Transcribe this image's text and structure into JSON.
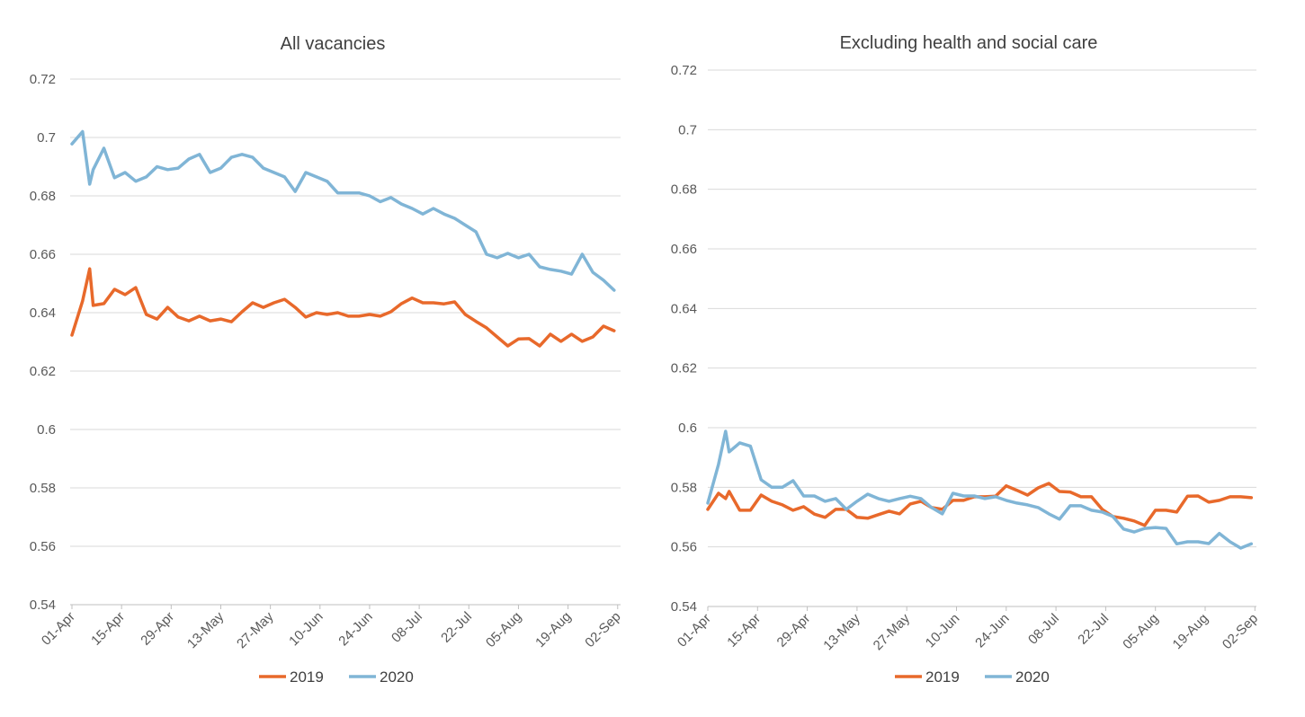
{
  "colors": {
    "2019": "#E8692B",
    "2020": "#80B5D6",
    "grid": "#D9D9D9"
  },
  "chart_data": [
    {
      "type": "line",
      "title": "All vacancies",
      "xlabel": "",
      "ylabel": "",
      "ylim": [
        0.54,
        0.72
      ],
      "yticks": [
        "0.54",
        "0.56",
        "0.58",
        "0.6",
        "0.62",
        "0.64",
        "0.66",
        "0.68",
        "0.7",
        "0.72"
      ],
      "xticks": [
        "01-Apr",
        "15-Apr",
        "29-Apr",
        "13-May",
        "27-May",
        "10-Jun",
        "24-Jun",
        "08-Jul",
        "22-Jul",
        "05-Aug",
        "19-Aug",
        "02-Sep"
      ],
      "grid": true,
      "legend": "bottom",
      "x": [
        "01-Apr",
        "04-Apr",
        "06-Apr",
        "07-Apr",
        "10-Apr",
        "13-Apr",
        "16-Apr",
        "19-Apr",
        "22-Apr",
        "25-Apr",
        "28-Apr",
        "01-May",
        "04-May",
        "07-May",
        "10-May",
        "13-May",
        "16-May",
        "19-May",
        "22-May",
        "25-May",
        "28-May",
        "31-May",
        "03-Jun",
        "06-Jun",
        "09-Jun",
        "12-Jun",
        "15-Jun",
        "18-Jun",
        "21-Jun",
        "24-Jun",
        "27-Jun",
        "30-Jun",
        "03-Jul",
        "06-Jul",
        "09-Jul",
        "12-Jul",
        "15-Jul",
        "18-Jul",
        "21-Jul",
        "24-Jul",
        "27-Jul",
        "30-Jul",
        "02-Aug",
        "05-Aug",
        "08-Aug",
        "11-Aug",
        "14-Aug",
        "17-Aug",
        "20-Aug",
        "23-Aug",
        "26-Aug",
        "29-Aug",
        "01-Sep"
      ],
      "series": [
        {
          "name": "2019",
          "values": [
            0.6323,
            0.644,
            0.655,
            0.6425,
            0.6431,
            0.648,
            0.6462,
            0.6486,
            0.6394,
            0.6378,
            0.6418,
            0.6385,
            0.6372,
            0.6388,
            0.6372,
            0.6378,
            0.6369,
            0.6403,
            0.6434,
            0.6418,
            0.6434,
            0.6446,
            0.6418,
            0.6385,
            0.64,
            0.6394,
            0.64,
            0.6388,
            0.6388,
            0.6394,
            0.6388,
            0.6403,
            0.6431,
            0.645,
            0.6434,
            0.6434,
            0.643,
            0.6437,
            0.6394,
            0.637,
            0.6348,
            0.6317,
            0.6286,
            0.631,
            0.6311,
            0.6286,
            0.6326,
            0.6302,
            0.6326,
            0.6302,
            0.6317,
            0.6354,
            0.6338
          ]
        },
        {
          "name": "2020",
          "values": [
            0.6978,
            0.702,
            0.684,
            0.689,
            0.6963,
            0.6862,
            0.688,
            0.685,
            0.6865,
            0.69,
            0.689,
            0.6895,
            0.6926,
            0.6942,
            0.688,
            0.6895,
            0.6932,
            0.6942,
            0.6932,
            0.6895,
            0.688,
            0.6865,
            0.6815,
            0.688,
            0.6865,
            0.685,
            0.681,
            0.681,
            0.681,
            0.68,
            0.678,
            0.6794,
            0.6772,
            0.6757,
            0.6738,
            0.6757,
            0.6738,
            0.6723,
            0.67,
            0.6677,
            0.66,
            0.6588,
            0.6603,
            0.6588,
            0.66,
            0.6557,
            0.6548,
            0.6542,
            0.6532,
            0.66,
            0.6538,
            0.6511,
            0.6477
          ]
        }
      ]
    },
    {
      "type": "line",
      "title": "Excluding health and social care",
      "xlabel": "",
      "ylabel": "",
      "ylim": [
        0.54,
        0.72
      ],
      "yticks": [
        "0.54",
        "0.56",
        "0.58",
        "0.6",
        "0.62",
        "0.64",
        "0.66",
        "0.68",
        "0.7",
        "0.72"
      ],
      "xticks": [
        "01-Apr",
        "15-Apr",
        "29-Apr",
        "13-May",
        "27-May",
        "10-Jun",
        "24-Jun",
        "08-Jul",
        "22-Jul",
        "05-Aug",
        "19-Aug",
        "02-Sep"
      ],
      "grid": true,
      "legend": "bottom",
      "x": [
        "01-Apr",
        "04-Apr",
        "06-Apr",
        "07-Apr",
        "10-Apr",
        "13-Apr",
        "16-Apr",
        "19-Apr",
        "22-Apr",
        "25-Apr",
        "28-Apr",
        "01-May",
        "04-May",
        "07-May",
        "10-May",
        "13-May",
        "16-May",
        "19-May",
        "22-May",
        "25-May",
        "28-May",
        "31-May",
        "03-Jun",
        "06-Jun",
        "09-Jun",
        "12-Jun",
        "15-Jun",
        "18-Jun",
        "21-Jun",
        "24-Jun",
        "27-Jun",
        "30-Jun",
        "03-Jul",
        "06-Jul",
        "09-Jul",
        "12-Jul",
        "15-Jul",
        "18-Jul",
        "21-Jul",
        "24-Jul",
        "27-Jul",
        "30-Jul",
        "02-Aug",
        "05-Aug",
        "08-Aug",
        "11-Aug",
        "14-Aug",
        "17-Aug",
        "20-Aug",
        "23-Aug",
        "26-Aug",
        "29-Aug",
        "01-Sep"
      ],
      "series": [
        {
          "name": "2019",
          "values": [
            0.5726,
            0.578,
            0.5762,
            0.5786,
            0.5723,
            0.5723,
            0.5774,
            0.5753,
            0.5741,
            0.5723,
            0.5735,
            0.571,
            0.5699,
            0.5726,
            0.5726,
            0.5699,
            0.5696,
            0.5708,
            0.572,
            0.5711,
            0.5744,
            0.5753,
            0.5732,
            0.5726,
            0.5756,
            0.5756,
            0.5768,
            0.5768,
            0.577,
            0.5805,
            0.579,
            0.5774,
            0.5798,
            0.5813,
            0.5786,
            0.5784,
            0.5768,
            0.5768,
            0.5726,
            0.5702,
            0.5696,
            0.5687,
            0.5672,
            0.5723,
            0.5723,
            0.5717,
            0.577,
            0.5771,
            0.575,
            0.5756,
            0.5768,
            0.5768,
            0.5765
          ]
        },
        {
          "name": "2020",
          "values": [
            0.5747,
            0.5877,
            0.5988,
            0.5919,
            0.5949,
            0.5938,
            0.5825,
            0.58,
            0.58,
            0.5822,
            0.5771,
            0.5771,
            0.5753,
            0.5762,
            0.5726,
            0.5753,
            0.5777,
            0.5762,
            0.5753,
            0.5762,
            0.577,
            0.5762,
            0.5732,
            0.5711,
            0.578,
            0.5771,
            0.5771,
            0.5762,
            0.5768,
            0.5756,
            0.5747,
            0.5741,
            0.5732,
            0.5711,
            0.5693,
            0.5738,
            0.5738,
            0.5723,
            0.5717,
            0.5702,
            0.566,
            0.565,
            0.5662,
            0.5665,
            0.5662,
            0.561,
            0.5617,
            0.5617,
            0.5611,
            0.5645,
            0.5617,
            0.5596,
            0.561
          ]
        }
      ]
    }
  ]
}
